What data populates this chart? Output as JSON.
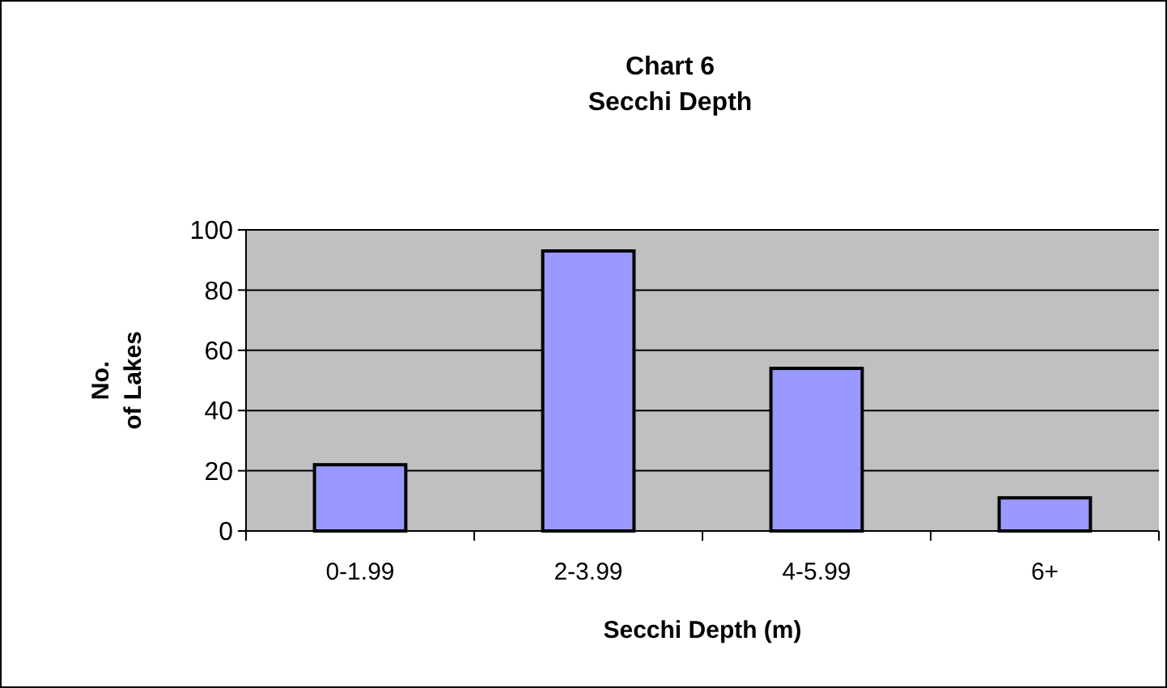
{
  "chart_data": {
    "type": "bar",
    "title": "Chart 6\nSecchi Depth",
    "xlabel": "Secchi Depth (m)",
    "ylabel": "No.\nof Lakes",
    "categories": [
      "0-1.99",
      "2-3.99",
      "4-5.99",
      "6+"
    ],
    "values": [
      22,
      93,
      54,
      11
    ],
    "color": "#9999ff",
    "ylim": [
      0,
      100
    ],
    "yticks": [
      0,
      20,
      40,
      60,
      80,
      100
    ],
    "grid": "y"
  }
}
